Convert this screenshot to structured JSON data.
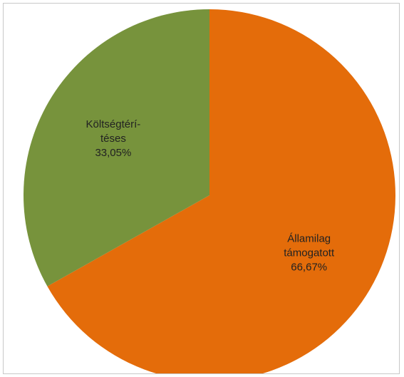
{
  "chart_data": {
    "type": "pie",
    "slices": [
      {
        "label_lines": [
          "Államilag",
          "támogatott"
        ],
        "value_text": "66,67%",
        "value": 66.67,
        "color": "#e46c0a"
      },
      {
        "label_lines": [
          "Költségtérí-",
          "téses"
        ],
        "value_text": "33,05%",
        "value": 33.05,
        "color": "#77933c"
      }
    ],
    "legend": "none",
    "start_angle_deg": 0,
    "direction": "clockwise"
  }
}
